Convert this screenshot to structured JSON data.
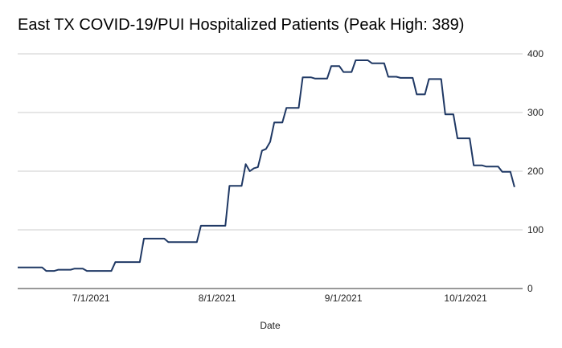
{
  "chart_data": {
    "type": "line",
    "title": "East TX COVID-19/PUI Hospitalized Patients (Peak High: 389)",
    "xlabel": "Date",
    "ylabel": "",
    "ylim": [
      0,
      400
    ],
    "yticks": [
      0,
      100,
      200,
      300,
      400
    ],
    "y_axis_side": "right",
    "grid": true,
    "legend": "none",
    "line_color": "#1f3864",
    "xticks": [
      {
        "date": "2021-07-01",
        "label": "7/1/2021"
      },
      {
        "date": "2021-08-01",
        "label": "8/1/2021"
      },
      {
        "date": "2021-09-01",
        "label": "9/1/2021"
      },
      {
        "date": "2021-10-01",
        "label": "10/1/2021"
      }
    ],
    "xlim": [
      "2021-06-13",
      "2021-10-15"
    ],
    "series": [
      {
        "name": "",
        "points": [
          [
            "2021-06-13",
            36
          ],
          [
            "2021-06-19",
            36
          ],
          [
            "2021-06-20",
            30
          ],
          [
            "2021-06-22",
            30
          ],
          [
            "2021-06-23",
            32
          ],
          [
            "2021-06-26",
            32
          ],
          [
            "2021-06-27",
            34
          ],
          [
            "2021-06-29",
            34
          ],
          [
            "2021-06-30",
            30
          ],
          [
            "2021-07-06",
            30
          ],
          [
            "2021-07-07",
            45
          ],
          [
            "2021-07-13",
            45
          ],
          [
            "2021-07-14",
            85
          ],
          [
            "2021-07-19",
            85
          ],
          [
            "2021-07-20",
            79
          ],
          [
            "2021-07-27",
            79
          ],
          [
            "2021-07-28",
            107
          ],
          [
            "2021-08-03",
            107
          ],
          [
            "2021-08-04",
            175
          ],
          [
            "2021-08-07",
            175
          ],
          [
            "2021-08-08",
            212
          ],
          [
            "2021-08-09",
            200
          ],
          [
            "2021-08-10",
            205
          ],
          [
            "2021-08-11",
            207
          ],
          [
            "2021-08-12",
            235
          ],
          [
            "2021-08-13",
            238
          ],
          [
            "2021-08-14",
            250
          ],
          [
            "2021-08-15",
            283
          ],
          [
            "2021-08-17",
            283
          ],
          [
            "2021-08-18",
            308
          ],
          [
            "2021-08-21",
            308
          ],
          [
            "2021-08-22",
            360
          ],
          [
            "2021-08-24",
            360
          ],
          [
            "2021-08-25",
            358
          ],
          [
            "2021-08-28",
            358
          ],
          [
            "2021-08-29",
            379
          ],
          [
            "2021-08-31",
            379
          ],
          [
            "2021-09-01",
            369
          ],
          [
            "2021-09-03",
            369
          ],
          [
            "2021-09-04",
            389
          ],
          [
            "2021-09-07",
            389
          ],
          [
            "2021-09-08",
            384
          ],
          [
            "2021-09-11",
            384
          ],
          [
            "2021-09-12",
            361
          ],
          [
            "2021-09-14",
            361
          ],
          [
            "2021-09-15",
            359
          ],
          [
            "2021-09-18",
            359
          ],
          [
            "2021-09-19",
            331
          ],
          [
            "2021-09-21",
            331
          ],
          [
            "2021-09-22",
            357
          ],
          [
            "2021-09-25",
            357
          ],
          [
            "2021-09-26",
            297
          ],
          [
            "2021-09-28",
            297
          ],
          [
            "2021-09-29",
            256
          ],
          [
            "2021-10-02",
            256
          ],
          [
            "2021-10-03",
            210
          ],
          [
            "2021-10-05",
            210
          ],
          [
            "2021-10-06",
            208
          ],
          [
            "2021-10-09",
            208
          ],
          [
            "2021-10-10",
            199
          ],
          [
            "2021-10-12",
            199
          ],
          [
            "2021-10-13",
            173
          ]
        ]
      }
    ]
  }
}
